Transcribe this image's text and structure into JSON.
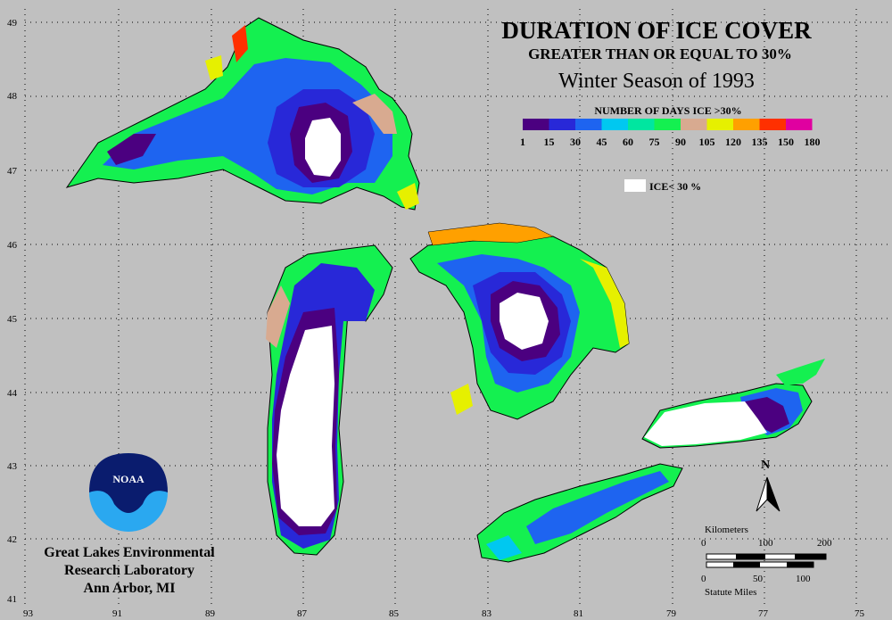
{
  "title": {
    "line1": "DURATION OF ICE COVER",
    "line2": "GREATER THAN OR EQUAL TO 30%",
    "line3": "Winter Season of 1993"
  },
  "legend": {
    "title": "NUMBER OF DAYS ICE >30%",
    "ticks": [
      "1",
      "15",
      "30",
      "45",
      "60",
      "75",
      "90",
      "105",
      "120",
      "135",
      "150",
      "180"
    ],
    "colors": [
      "#4b0080",
      "#2828d8",
      "#1e64f0",
      "#00c8f0",
      "#00e6a0",
      "#14f050",
      "#d8aa90",
      "#e6f000",
      "#ffa000",
      "#ff3000",
      "#e000a0"
    ],
    "white_label": "ICE< 30 %",
    "white_color": "#ffffff"
  },
  "axes": {
    "lat": [
      "49",
      "48",
      "47",
      "46",
      "45",
      "44",
      "43",
      "42",
      "41"
    ],
    "lon": [
      "93",
      "91",
      "89",
      "87",
      "85",
      "83",
      "81",
      "79",
      "77",
      "75"
    ]
  },
  "north_label": "N",
  "scale": {
    "km_label": "Kilometers",
    "km_ticks": [
      "0",
      "100",
      "200"
    ],
    "mi_ticks": [
      "0",
      "50",
      "100"
    ],
    "mi_label": "Statute Miles"
  },
  "logo": {
    "text": "NOAA"
  },
  "institution": {
    "line1": "Great Lakes Environmental",
    "line2": "Research Laboratory",
    "line3": "Ann Arbor, MI"
  },
  "colors": {
    "background": "#c0c0c0",
    "grid": "#000000"
  }
}
